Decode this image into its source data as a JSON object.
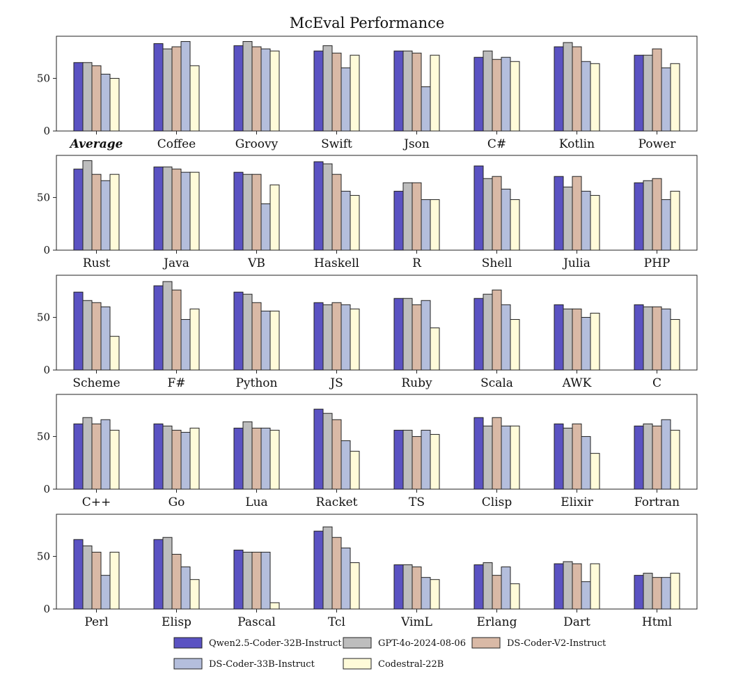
{
  "chart_data": {
    "type": "bar",
    "title": "McEval Performance",
    "ylim": [
      0,
      90
    ],
    "yticks": [
      0,
      50
    ],
    "grid": false,
    "legend_position": "bottom",
    "series": [
      {
        "name": "Qwen2.5-Coder-32B-Instruct",
        "color": "#5a52c2"
      },
      {
        "name": "GPT-4o-2024-08-06",
        "color": "#bdbdbd"
      },
      {
        "name": "DS-Coder-V2-Instruct",
        "color": "#d9b9a6"
      },
      {
        "name": "DS-Coder-33B-Instruct",
        "color": "#b4bedc"
      },
      {
        "name": "Codestral-22B",
        "color": "#fffbd9"
      }
    ],
    "panels": [
      {
        "categories": [
          "Average",
          "Coffee",
          "Groovy",
          "Swift",
          "Json",
          "C#",
          "Kotlin",
          "Power"
        ],
        "values": [
          [
            65,
            65,
            62,
            54,
            50
          ],
          [
            83,
            78,
            80,
            85,
            62
          ],
          [
            81,
            85,
            80,
            78,
            76
          ],
          [
            76,
            81,
            74,
            60,
            72
          ],
          [
            76,
            76,
            74,
            42,
            72
          ],
          [
            70,
            76,
            68,
            70,
            66
          ],
          [
            80,
            84,
            80,
            66,
            64
          ],
          [
            72,
            72,
            78,
            60,
            64
          ]
        ]
      },
      {
        "categories": [
          "Rust",
          "Java",
          "VB",
          "Haskell",
          "R",
          "Shell",
          "Julia",
          "PHP"
        ],
        "values": [
          [
            77,
            85,
            72,
            66,
            72
          ],
          [
            79,
            79,
            77,
            74,
            74
          ],
          [
            74,
            72,
            72,
            44,
            62
          ],
          [
            84,
            82,
            72,
            56,
            52
          ],
          [
            56,
            64,
            64,
            48,
            48
          ],
          [
            80,
            68,
            70,
            58,
            48
          ],
          [
            70,
            60,
            70,
            56,
            52
          ],
          [
            64,
            66,
            68,
            48,
            56
          ]
        ]
      },
      {
        "categories": [
          "Scheme",
          "F#",
          "Python",
          "JS",
          "Ruby",
          "Scala",
          "AWK",
          "C"
        ],
        "values": [
          [
            74,
            66,
            64,
            60,
            32
          ],
          [
            80,
            84,
            76,
            48,
            58
          ],
          [
            74,
            72,
            64,
            56,
            56
          ],
          [
            64,
            62,
            64,
            62,
            58
          ],
          [
            68,
            68,
            62,
            66,
            40
          ],
          [
            68,
            72,
            76,
            62,
            48
          ],
          [
            62,
            58,
            58,
            50,
            54
          ],
          [
            62,
            60,
            60,
            58,
            48
          ]
        ]
      },
      {
        "categories": [
          "C++",
          "Go",
          "Lua",
          "Racket",
          "TS",
          "Clisp",
          "Elixir",
          "Fortran"
        ],
        "values": [
          [
            62,
            68,
            62,
            66,
            56
          ],
          [
            62,
            60,
            56,
            54,
            58
          ],
          [
            58,
            64,
            58,
            58,
            56
          ],
          [
            76,
            72,
            66,
            46,
            36
          ],
          [
            56,
            56,
            50,
            56,
            52
          ],
          [
            68,
            60,
            68,
            60,
            60
          ],
          [
            62,
            58,
            62,
            50,
            34
          ],
          [
            60,
            62,
            60,
            66,
            56
          ]
        ]
      },
      {
        "categories": [
          "Perl",
          "Elisp",
          "Pascal",
          "Tcl",
          "VimL",
          "Erlang",
          "Dart",
          "Html"
        ],
        "values": [
          [
            66,
            60,
            54,
            32,
            54
          ],
          [
            66,
            68,
            52,
            40,
            28
          ],
          [
            56,
            54,
            54,
            54,
            6
          ],
          [
            74,
            78,
            68,
            58,
            44
          ],
          [
            42,
            42,
            40,
            30,
            28
          ],
          [
            42,
            44,
            32,
            40,
            24
          ],
          [
            43,
            45,
            43,
            26,
            43
          ],
          [
            32,
            34,
            30,
            30,
            34
          ]
        ]
      }
    ]
  }
}
